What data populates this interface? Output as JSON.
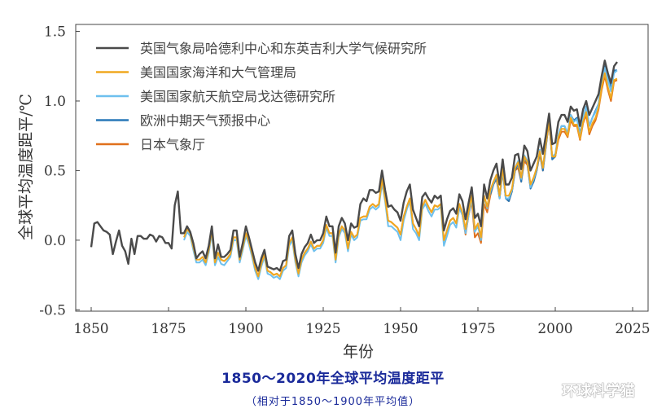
{
  "chart_data": {
    "type": "line",
    "title": "1850～2020年全球平均温度距平",
    "subtitle": "（相对于1850～1900年平均值）",
    "xlabel": "年份",
    "ylabel": "全球平均温度距平/℃",
    "xlim": [
      1845,
      2030
    ],
    "ylim": [
      -0.51,
      1.55
    ],
    "xticks": [
      1850,
      1875,
      1900,
      1925,
      1950,
      1975,
      2000,
      2025
    ],
    "yticks": [
      -0.5,
      0.0,
      0.5,
      1.0,
      1.5
    ],
    "ytick_labels": [
      "-0.5",
      "0.0",
      "0.5",
      "1.0",
      "1.5"
    ],
    "grid": false,
    "legend_placement": "top-left",
    "series": [
      {
        "name": "英国气象局哈德利中心和东英吉利大学气候研究所",
        "color": "#4a4a4a",
        "start": 1850,
        "values": [
          -0.05,
          0.12,
          0.13,
          0.1,
          0.07,
          0.06,
          0.04,
          -0.1,
          -0.01,
          0.07,
          -0.04,
          -0.08,
          -0.17,
          0.01,
          -0.1,
          0.03,
          0.03,
          0.01,
          0.01,
          0.04,
          0.03,
          -0.01,
          0.03,
          0.02,
          -0.02,
          -0.02,
          -0.06,
          0.25,
          0.35,
          0.05,
          0.05,
          0.1,
          0.06,
          -0.02,
          -0.13,
          -0.1,
          -0.08,
          -0.13,
          -0.04,
          0.1,
          -0.13,
          -0.03,
          -0.12,
          -0.12,
          -0.1,
          -0.07,
          0.07,
          0.07,
          -0.12,
          -0.02,
          0.1,
          0.02,
          -0.07,
          -0.16,
          -0.22,
          -0.13,
          -0.07,
          -0.19,
          -0.2,
          -0.21,
          -0.2,
          -0.22,
          -0.15,
          -0.14,
          0.03,
          0.07,
          -0.1,
          -0.2,
          -0.1,
          -0.05,
          -0.02,
          0.04,
          -0.02,
          0.0,
          0.0,
          0.05,
          0.17,
          0.1,
          0.1,
          -0.09,
          0.1,
          0.16,
          0.12,
          0.0,
          0.12,
          0.09,
          0.1,
          0.26,
          0.3,
          0.28,
          0.36,
          0.36,
          0.34,
          0.35,
          0.5,
          0.36,
          0.24,
          0.25,
          0.22,
          0.2,
          0.14,
          0.27,
          0.35,
          0.4,
          0.22,
          0.16,
          0.1,
          0.31,
          0.34,
          0.3,
          0.27,
          0.32,
          0.3,
          0.32,
          0.07,
          0.15,
          0.21,
          0.23,
          0.19,
          0.33,
          0.28,
          0.15,
          0.27,
          0.38,
          0.16,
          0.19,
          0.1,
          0.4,
          0.3,
          0.43,
          0.5,
          0.55,
          0.4,
          0.58,
          0.4,
          0.4,
          0.45,
          0.61,
          0.62,
          0.51,
          0.68,
          0.64,
          0.5,
          0.55,
          0.6,
          0.73,
          0.62,
          0.76,
          0.91,
          0.69,
          0.7,
          0.85,
          0.9,
          0.9,
          0.85,
          0.96,
          0.93,
          0.94,
          0.82,
          0.94,
          1.0,
          0.9,
          0.95,
          1.0,
          1.05,
          1.18,
          1.29,
          1.2,
          1.13,
          1.25,
          1.28
        ]
      },
      {
        "name": "美国国家海洋和大气管理局",
        "color": "#f0a820",
        "start": 1880,
        "values": [
          0.02,
          0.08,
          0.05,
          -0.05,
          -0.14,
          -0.14,
          -0.12,
          -0.16,
          -0.07,
          0.07,
          -0.16,
          -0.09,
          -0.14,
          -0.15,
          -0.13,
          -0.1,
          0.02,
          0.02,
          -0.14,
          -0.05,
          0.05,
          -0.01,
          -0.1,
          -0.2,
          -0.26,
          -0.17,
          -0.1,
          -0.22,
          -0.23,
          -0.25,
          -0.24,
          -0.26,
          -0.2,
          -0.18,
          -0.02,
          0.02,
          -0.14,
          -0.24,
          -0.14,
          -0.09,
          -0.06,
          -0.01,
          -0.06,
          -0.04,
          -0.04,
          0.0,
          0.11,
          0.05,
          0.05,
          -0.14,
          0.04,
          0.1,
          0.07,
          -0.06,
          0.06,
          0.02,
          0.04,
          0.16,
          0.17,
          0.17,
          0.24,
          0.26,
          0.24,
          0.26,
          0.44,
          0.3,
          0.14,
          0.13,
          0.11,
          0.09,
          0.04,
          0.17,
          0.24,
          0.3,
          0.12,
          0.08,
          0.03,
          0.24,
          0.29,
          0.24,
          0.2,
          0.25,
          0.24,
          0.26,
          0.0,
          0.07,
          0.14,
          0.16,
          0.12,
          0.26,
          0.2,
          0.08,
          0.21,
          0.32,
          0.08,
          0.12,
          0.02,
          0.32,
          0.24,
          0.36,
          0.42,
          0.47,
          0.32,
          0.52,
          0.32,
          0.32,
          0.37,
          0.52,
          0.56,
          0.45,
          0.6,
          0.56,
          0.4,
          0.45,
          0.52,
          0.64,
          0.52,
          0.7,
          0.86,
          0.6,
          0.6,
          0.74,
          0.8,
          0.8,
          0.75,
          0.88,
          0.83,
          0.83,
          0.73,
          0.85,
          0.92,
          0.78,
          0.84,
          0.88,
          0.95,
          1.1,
          1.2,
          1.1,
          1.02,
          1.15,
          1.16
        ]
      },
      {
        "name": "美国国家航天航空局戈达德研究所",
        "color": "#6ec0ee",
        "start": 1880,
        "values": [
          0.0,
          0.06,
          0.03,
          -0.07,
          -0.16,
          -0.16,
          -0.14,
          -0.18,
          -0.09,
          0.05,
          -0.18,
          -0.12,
          -0.17,
          -0.18,
          -0.15,
          -0.12,
          0.0,
          0.0,
          -0.16,
          -0.07,
          0.03,
          -0.03,
          -0.12,
          -0.22,
          -0.28,
          -0.19,
          -0.12,
          -0.24,
          -0.25,
          -0.27,
          -0.26,
          -0.28,
          -0.22,
          -0.2,
          -0.04,
          0.0,
          -0.16,
          -0.26,
          -0.16,
          -0.11,
          -0.08,
          -0.03,
          -0.08,
          -0.06,
          -0.06,
          -0.02,
          0.09,
          0.03,
          0.03,
          -0.16,
          0.02,
          0.08,
          0.05,
          -0.08,
          0.04,
          0.0,
          0.02,
          0.14,
          0.15,
          0.15,
          0.22,
          0.24,
          0.22,
          0.24,
          0.41,
          0.28,
          0.1,
          0.1,
          0.08,
          0.06,
          0.0,
          0.14,
          0.22,
          0.28,
          0.08,
          0.05,
          0.0,
          0.22,
          0.26,
          0.21,
          0.17,
          0.22,
          0.22,
          0.24,
          -0.04,
          0.03,
          0.11,
          0.13,
          0.09,
          0.23,
          0.18,
          0.05,
          0.18,
          0.3,
          0.06,
          0.1,
          0.0,
          0.31,
          0.23,
          0.35,
          0.41,
          0.47,
          0.3,
          0.51,
          0.3,
          0.3,
          0.36,
          0.52,
          0.57,
          0.44,
          0.61,
          0.57,
          0.38,
          0.44,
          0.51,
          0.65,
          0.52,
          0.7,
          0.87,
          0.6,
          0.62,
          0.76,
          0.82,
          0.82,
          0.77,
          0.9,
          0.85,
          0.87,
          0.75,
          0.88,
          0.96,
          0.82,
          0.88,
          0.92,
          0.98,
          1.12,
          1.24,
          1.15,
          1.07,
          1.2,
          1.22
        ]
      },
      {
        "name": "欧洲中期天气预报中心",
        "color": "#2878b8",
        "start": 1979,
        "values": [
          0.33,
          0.4,
          0.45,
          0.3,
          0.5,
          0.3,
          0.28,
          0.35,
          0.5,
          0.55,
          0.42,
          0.6,
          0.55,
          0.37,
          0.42,
          0.5,
          0.63,
          0.5,
          0.68,
          0.87,
          0.58,
          0.6,
          0.75,
          0.82,
          0.82,
          0.76,
          0.9,
          0.86,
          0.88,
          0.76,
          0.88,
          0.96,
          0.82,
          0.88,
          0.93,
          0.98,
          1.14,
          1.25,
          1.18,
          1.1,
          1.22,
          1.22
        ]
      },
      {
        "name": "日本气象厅",
        "color": "#e0701c",
        "start": 1891,
        "values": [
          -0.09,
          -0.14,
          -0.15,
          -0.13,
          -0.1,
          0.02,
          0.02,
          -0.14,
          -0.05,
          0.05,
          -0.01,
          -0.1,
          -0.2,
          -0.26,
          -0.17,
          -0.1,
          -0.22,
          -0.23,
          -0.25,
          -0.24,
          -0.26,
          -0.2,
          -0.18,
          -0.02,
          0.02,
          -0.14,
          -0.24,
          -0.14,
          -0.09,
          -0.06,
          -0.01,
          -0.06,
          -0.04,
          -0.04,
          0.0,
          0.11,
          0.05,
          0.05,
          -0.14,
          0.04,
          0.1,
          0.07,
          -0.06,
          0.06,
          0.02,
          0.04,
          0.16,
          0.17,
          0.17,
          0.24,
          0.26,
          0.24,
          0.26,
          0.44,
          0.3,
          0.14,
          0.13,
          0.11,
          0.09,
          0.04,
          0.17,
          0.24,
          0.3,
          0.12,
          0.08,
          0.03,
          0.24,
          0.29,
          0.24,
          0.2,
          0.25,
          0.24,
          0.26,
          0.0,
          0.07,
          0.14,
          0.16,
          0.12,
          0.26,
          0.18,
          0.04,
          0.18,
          0.28,
          0.02,
          0.05,
          -0.02,
          0.26,
          0.2,
          0.32,
          0.4,
          0.44,
          0.3,
          0.5,
          0.3,
          0.28,
          0.35,
          0.5,
          0.52,
          0.42,
          0.57,
          0.54,
          0.38,
          0.42,
          0.5,
          0.62,
          0.5,
          0.68,
          0.85,
          0.6,
          0.6,
          0.72,
          0.78,
          0.78,
          0.74,
          0.86,
          0.82,
          0.82,
          0.72,
          0.84,
          0.9,
          0.76,
          0.82,
          0.86,
          0.94,
          1.08,
          1.18,
          1.08,
          1.0,
          1.14,
          1.15
        ]
      }
    ]
  },
  "watermark": "环球科学猫"
}
